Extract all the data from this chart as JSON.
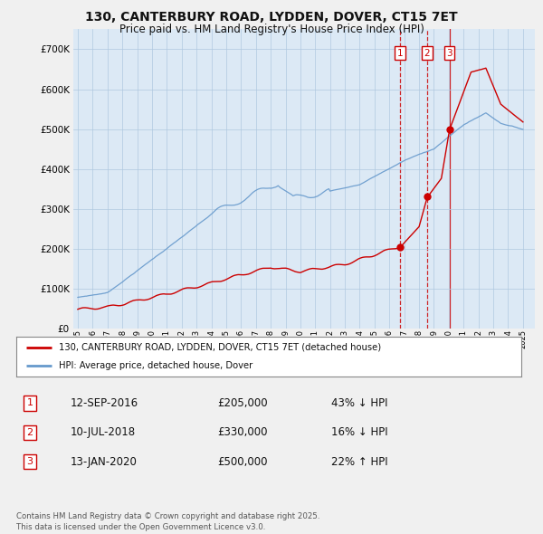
{
  "title": "130, CANTERBURY ROAD, LYDDEN, DOVER, CT15 7ET",
  "subtitle": "Price paid vs. HM Land Registry's House Price Index (HPI)",
  "background_color": "#f0f0f0",
  "plot_bg_color": "#dce9f5",
  "grid_color": "#b0c8e0",
  "red_color": "#cc0000",
  "blue_color": "#6699cc",
  "sale_prices": [
    205000,
    330000,
    500000
  ],
  "sale_labels": [
    "1",
    "2",
    "3"
  ],
  "sale_year_floats": [
    2016.708,
    2018.542,
    2020.042
  ],
  "vline_styles": [
    "dashed",
    "dashed",
    "solid"
  ],
  "sale_info": [
    {
      "label": "1",
      "date": "12-SEP-2016",
      "price": "£205,000",
      "pct": "43% ↓ HPI"
    },
    {
      "label": "2",
      "date": "10-JUL-2018",
      "price": "£330,000",
      "pct": "16% ↓ HPI"
    },
    {
      "label": "3",
      "date": "13-JAN-2020",
      "price": "£500,000",
      "pct": "22% ↑ HPI"
    }
  ],
  "ylim": [
    0,
    750000
  ],
  "yticks": [
    0,
    100000,
    200000,
    300000,
    400000,
    500000,
    600000,
    700000
  ],
  "xlim_left": 1994.7,
  "xlim_right": 2025.8,
  "legend_line1": "130, CANTERBURY ROAD, LYDDEN, DOVER, CT15 7ET (detached house)",
  "legend_line2": "HPI: Average price, detached house, Dover",
  "footer": "Contains HM Land Registry data © Crown copyright and database right 2025.\nThis data is licensed under the Open Government Licence v3.0."
}
